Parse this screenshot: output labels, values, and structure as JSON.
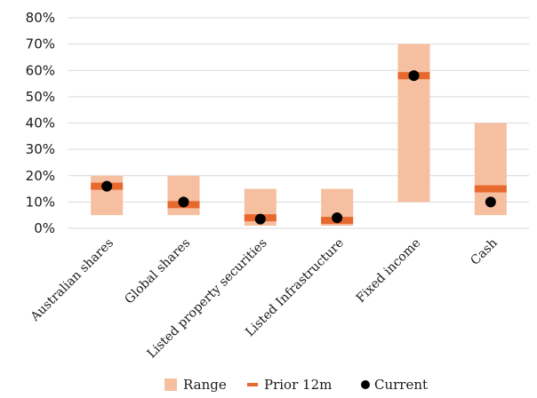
{
  "chart_data": {
    "type": "bar",
    "categories": [
      "Australian shares",
      "Global shares",
      "Listed property securities",
      "Listed Infrastructure",
      "Fixed income",
      "Cash"
    ],
    "series": [
      {
        "name": "Range",
        "kind": "floating-bar",
        "low": [
          5,
          5,
          1,
          1,
          10,
          5
        ],
        "high": [
          20,
          20,
          15,
          15,
          70,
          40
        ],
        "color": "#f5bfa0"
      },
      {
        "name": "Prior 12m",
        "kind": "marker-dash",
        "values": [
          16,
          9,
          4,
          3,
          58,
          15
        ],
        "color": "#e8692e"
      },
      {
        "name": "Current",
        "kind": "marker-dot",
        "values": [
          16,
          10,
          3.5,
          4,
          58,
          10
        ],
        "color": "#000000"
      }
    ],
    "y_ticks": [
      "0%",
      "10%",
      "20%",
      "30%",
      "40%",
      "50%",
      "60%",
      "70%",
      "80%"
    ],
    "ylim": [
      0,
      80
    ],
    "grid": true,
    "legend": "bottom"
  }
}
